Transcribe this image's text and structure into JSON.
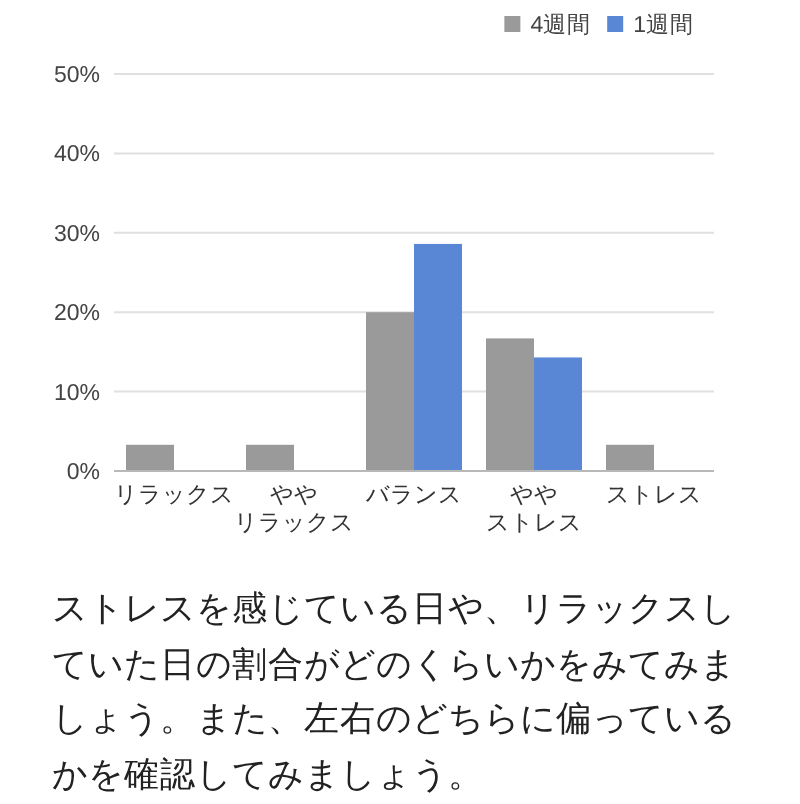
{
  "chart_data": {
    "type": "bar",
    "categories": [
      "リラックス",
      "ややリラックス",
      "バランス",
      "ややストレス",
      "ストレス"
    ],
    "series": [
      {
        "name": "4週間",
        "color": "#9a9a9a",
        "values": [
          3.3,
          3.3,
          20,
          16.7,
          3.3
        ]
      },
      {
        "name": "1週間",
        "color": "#5a86d6",
        "values": [
          0,
          0,
          28.6,
          14.3,
          0
        ]
      }
    ],
    "ylim": [
      0,
      50
    ],
    "yticks": [
      {
        "value": 0,
        "label": "0%"
      },
      {
        "value": 10,
        "label": "10%"
      },
      {
        "value": 20,
        "label": "20%"
      },
      {
        "value": 30,
        "label": "30%"
      },
      {
        "value": 40,
        "label": "40%"
      },
      {
        "value": 50,
        "label": "50%"
      }
    ],
    "grid": "y",
    "legend": "top right",
    "annotations": [
      "ストレスを感じている日や、リラックスしていた日の割合がどのくらいかをみてみましょう。また、左右のどちらに偏っているかを確認してみましょう。"
    ]
  }
}
